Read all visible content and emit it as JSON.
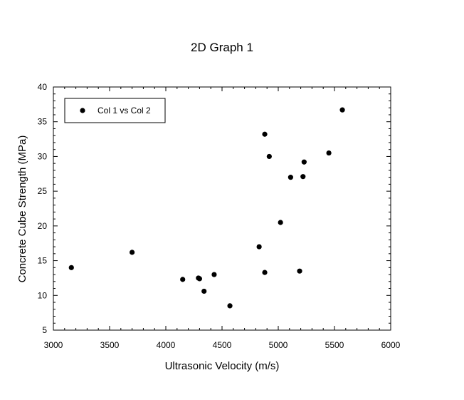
{
  "chart_data": {
    "type": "scatter",
    "title": "2D Graph 1",
    "xlabel": "Ultrasonic Velocity (m/s)",
    "ylabel": "Concrete Cube Strength (MPa)",
    "xlim": [
      3000,
      6000
    ],
    "ylim": [
      5,
      40
    ],
    "x_ticks": [
      3000,
      3500,
      4000,
      4500,
      5000,
      5500,
      6000
    ],
    "y_ticks": [
      5,
      10,
      15,
      20,
      25,
      30,
      35,
      40
    ],
    "grid": false,
    "legend_position": "top-left",
    "series": [
      {
        "name": "Col 1 vs Col 2",
        "color": "#000000",
        "marker": "circle",
        "points": [
          {
            "x": 3160,
            "y": 14.0
          },
          {
            "x": 3700,
            "y": 16.2
          },
          {
            "x": 4150,
            "y": 12.3
          },
          {
            "x": 4290,
            "y": 12.5
          },
          {
            "x": 4300,
            "y": 12.4
          },
          {
            "x": 4340,
            "y": 10.6
          },
          {
            "x": 4430,
            "y": 13.0
          },
          {
            "x": 4570,
            "y": 8.5
          },
          {
            "x": 4830,
            "y": 17.0
          },
          {
            "x": 4880,
            "y": 13.3
          },
          {
            "x": 4880,
            "y": 33.2
          },
          {
            "x": 4920,
            "y": 30.0
          },
          {
            "x": 5020,
            "y": 20.5
          },
          {
            "x": 5110,
            "y": 27.0
          },
          {
            "x": 5190,
            "y": 13.5
          },
          {
            "x": 5220,
            "y": 27.1
          },
          {
            "x": 5230,
            "y": 29.2
          },
          {
            "x": 5450,
            "y": 30.5
          },
          {
            "x": 5570,
            "y": 36.7
          }
        ]
      }
    ]
  }
}
